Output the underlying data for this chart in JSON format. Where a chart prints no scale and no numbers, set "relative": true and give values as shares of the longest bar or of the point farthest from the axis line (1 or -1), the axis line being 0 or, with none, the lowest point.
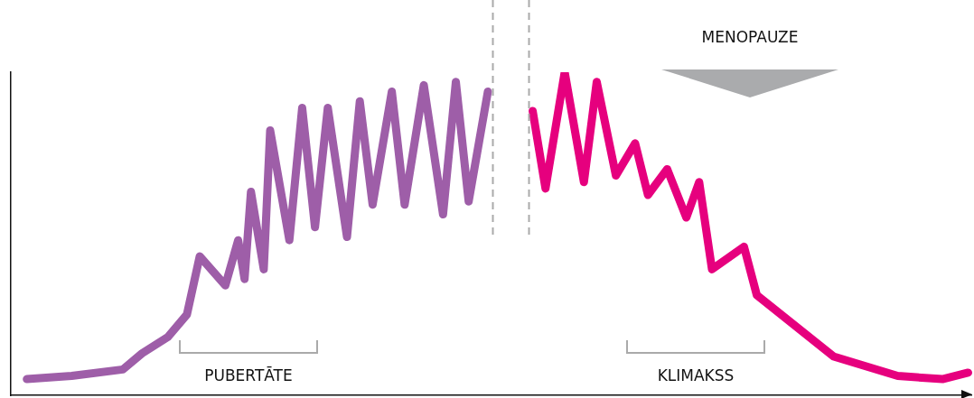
{
  "chart_data": {
    "type": "line",
    "relative": true,
    "grid": false,
    "legend": false,
    "categories": [
      null,
      null,
      null,
      null,
      null,
      null,
      null,
      null,
      null,
      null,
      null,
      null,
      null,
      null,
      null,
      null,
      null,
      null,
      null,
      null,
      null,
      null,
      null,
      null,
      null,
      null,
      null,
      null,
      null,
      null,
      null,
      null,
      null,
      null,
      null,
      null,
      null,
      null,
      null,
      null,
      null,
      null,
      null,
      null,
      null,
      null,
      null,
      null,
      null,
      null,
      null,
      null,
      null,
      null,
      null,
      null,
      null,
      null,
      null,
      null,
      null,
      null,
      null,
      null,
      null,
      null,
      null,
      null,
      null,
      null,
      null,
      null,
      null,
      null,
      null,
      null,
      null,
      null,
      null,
      null,
      null,
      null,
      null,
      null,
      null,
      null,
      null,
      null,
      null,
      null,
      null,
      null,
      null,
      null,
      null,
      null,
      null,
      null,
      null,
      null,
      null,
      null,
      null,
      null,
      null,
      null,
      null,
      null,
      null,
      null,
      null,
      null,
      null,
      null,
      null,
      null,
      null,
      null,
      null,
      null,
      null,
      null,
      null,
      null,
      null,
      null,
      null,
      null,
      null,
      null,
      null,
      null,
      null,
      null,
      null,
      null,
      null,
      null,
      null,
      null,
      null,
      null,
      null,
      null,
      null,
      null,
      null,
      null,
      null,
      null
    ],
    "series": [
      {
        "color": "#9e5ea8",
        "values": [
          null,
          null,
          0.05,
          null,
          null,
          null,
          null,
          null,
          null,
          0.06,
          null,
          null,
          null,
          null,
          null,
          null,
          null,
          0.08,
          null,
          null,
          0.13,
          null,
          null,
          null,
          0.18,
          null,
          null,
          0.25,
          null,
          0.43,
          null,
          null,
          null,
          0.34,
          null,
          0.48,
          0.36,
          0.63,
          null,
          0.39,
          0.82,
          null,
          null,
          0.48,
          null,
          0.89,
          null,
          0.52,
          null,
          0.89,
          null,
          null,
          0.49,
          null,
          0.91,
          null,
          0.59,
          null,
          null,
          0.94,
          null,
          0.59,
          null,
          null,
          0.96,
          null,
          null,
          0.56,
          null,
          0.97,
          null,
          0.6,
          null,
          null,
          0.94,
          null,
          null,
          null,
          null,
          null,
          null,
          null,
          null,
          null,
          null,
          null,
          null,
          null,
          null,
          null,
          null,
          null,
          null,
          null,
          null,
          null,
          null,
          null,
          null,
          null,
          null,
          null,
          null,
          null,
          null,
          null,
          null,
          null,
          null,
          null,
          null,
          null,
          null,
          null,
          null,
          null,
          null,
          null,
          null,
          null,
          null,
          null,
          null,
          null,
          null,
          null,
          null,
          null,
          null,
          null,
          null,
          null,
          null,
          null,
          null,
          null,
          null,
          null,
          null,
          null,
          null,
          null,
          null,
          null,
          null,
          null,
          null,
          null,
          null,
          null
        ]
      },
      {
        "color": "#e6007e",
        "values": [
          null,
          null,
          null,
          null,
          null,
          null,
          null,
          null,
          null,
          null,
          null,
          null,
          null,
          null,
          null,
          null,
          null,
          null,
          null,
          null,
          null,
          null,
          null,
          null,
          null,
          null,
          null,
          null,
          null,
          null,
          null,
          null,
          null,
          null,
          null,
          null,
          null,
          null,
          null,
          null,
          null,
          null,
          null,
          null,
          null,
          null,
          null,
          null,
          null,
          null,
          null,
          null,
          null,
          null,
          null,
          null,
          null,
          null,
          null,
          null,
          null,
          null,
          null,
          null,
          null,
          null,
          null,
          null,
          null,
          null,
          null,
          null,
          null,
          null,
          null,
          null,
          null,
          null,
          null,
          null,
          null,
          0.88,
          null,
          0.64,
          null,
          null,
          1,
          null,
          null,
          0.66,
          null,
          0.97,
          null,
          null,
          0.68,
          null,
          null,
          0.78,
          null,
          0.62,
          null,
          null,
          0.7,
          null,
          null,
          0.55,
          null,
          0.66,
          null,
          0.39,
          null,
          null,
          null,
          null,
          0.46,
          null,
          0.31,
          null,
          null,
          null,
          null,
          null,
          null,
          null,
          null,
          null,
          null,
          null,
          0.12,
          null,
          null,
          null,
          null,
          null,
          null,
          null,
          null,
          null,
          0.06,
          null,
          null,
          null,
          null,
          null,
          null,
          0.05,
          null,
          null,
          null,
          0.07
        ]
      }
    ],
    "annotations": [
      "PUBERTĀTE",
      "KLIMAKSS",
      "MENOPAUZE"
    ]
  }
}
